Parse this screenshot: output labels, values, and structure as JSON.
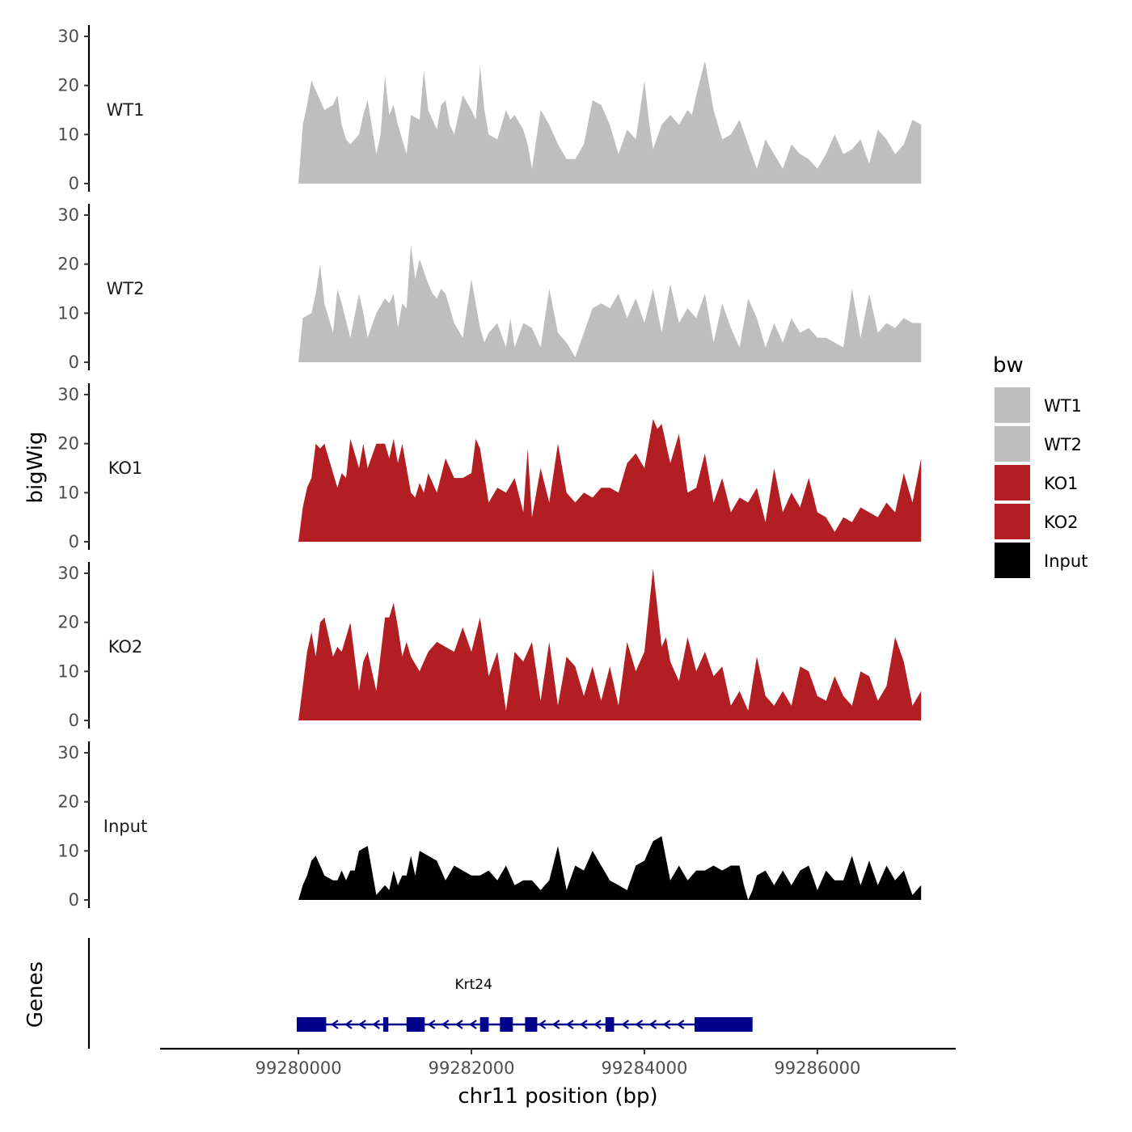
{
  "chart_data": {
    "type": "area",
    "title": "",
    "xlabel": "chr11 position (bp)",
    "ylabel": "bigWig",
    "genes_label": "Genes",
    "xlim": [
      99278400,
      99287600
    ],
    "xticks": [
      99280000,
      99282000,
      99284000,
      99286000
    ],
    "xtick_labels": [
      "99280000",
      "99282000",
      "99284000",
      "99286000"
    ],
    "ylim": [
      0,
      30
    ],
    "yticks": [
      0,
      10,
      20,
      30
    ],
    "ytick_labels": [
      "0",
      "10",
      "20",
      "30"
    ],
    "legend": {
      "title": "bw",
      "position": "right",
      "items": [
        {
          "label": "WT1",
          "color": "#bebebe"
        },
        {
          "label": "WT2",
          "color": "#bebebe"
        },
        {
          "label": "KO1",
          "color": "#b21e21"
        },
        {
          "label": "KO2",
          "color": "#b21e21"
        },
        {
          "label": "Input",
          "color": "#000000"
        }
      ]
    },
    "tracks": [
      {
        "name": "WT1",
        "color": "#bebebe",
        "x": [
          99280000,
          99280050,
          99280100,
          99280150,
          99280200,
          99280300,
          99280400,
          99280450,
          99280500,
          99280550,
          99280600,
          99280700,
          99280750,
          99280800,
          99280900,
          99280950,
          99281000,
          99281050,
          99281100,
          99281150,
          99281250,
          99281300,
          99281400,
          99281450,
          99281500,
          99281600,
          99281650,
          99281700,
          99281750,
          99281800,
          99281900,
          99282000,
          99282050,
          99282100,
          99282150,
          99282200,
          99282300,
          99282400,
          99282450,
          99282500,
          99282600,
          99282650,
          99282700,
          99282800,
          99282900,
          99283000,
          99283100,
          99283200,
          99283300,
          99283400,
          99283500,
          99283600,
          99283700,
          99283800,
          99283900,
          99284000,
          99284050,
          99284100,
          99284200,
          99284300,
          99284400,
          99284500,
          99284550,
          99284600,
          99284700,
          99284800,
          99284900,
          99285000,
          99285100,
          99285200,
          99285300,
          99285400,
          99285500,
          99285600,
          99285700,
          99285800,
          99285900,
          99286000,
          99286100,
          99286200,
          99286300,
          99286400,
          99286500,
          99286600,
          99286700,
          99286800,
          99286900,
          99287000,
          99287100,
          99287200
        ],
        "values": [
          0,
          12,
          16,
          21,
          19,
          15,
          16,
          18,
          12,
          9,
          8,
          10,
          14,
          17,
          6,
          10,
          22,
          14,
          16,
          12,
          6,
          14,
          13,
          23,
          15,
          11,
          16,
          17,
          12,
          10,
          18,
          15,
          13,
          24,
          15,
          10,
          9,
          15,
          13,
          14,
          11,
          8,
          3,
          15,
          12,
          8,
          5,
          5,
          8,
          17,
          16,
          12,
          6,
          11,
          9,
          21,
          13,
          7,
          12,
          14,
          12,
          15,
          14,
          18,
          25,
          15,
          9,
          10,
          13,
          8,
          3,
          9,
          6,
          3,
          8,
          6,
          5,
          3,
          6,
          10,
          6,
          7,
          9,
          4,
          11,
          9,
          6,
          8,
          13,
          12
        ],
        "label_value": 15
      },
      {
        "name": "WT2",
        "color": "#bebebe",
        "x": [
          99280000,
          99280050,
          99280150,
          99280200,
          99280250,
          99280300,
          99280400,
          99280450,
          99280500,
          99280600,
          99280700,
          99280750,
          99280800,
          99280900,
          99281000,
          99281050,
          99281100,
          99281150,
          99281200,
          99281250,
          99281300,
          99281350,
          99281400,
          99281500,
          99281550,
          99281600,
          99281650,
          99281700,
          99281800,
          99281900,
          99282000,
          99282100,
          99282150,
          99282200,
          99282300,
          99282400,
          99282450,
          99282500,
          99282600,
          99282700,
          99282800,
          99282900,
          99283000,
          99283100,
          99283200,
          99283300,
          99283400,
          99283500,
          99283600,
          99283700,
          99283800,
          99283900,
          99284000,
          99284100,
          99284200,
          99284300,
          99284400,
          99284500,
          99284600,
          99284700,
          99284800,
          99284900,
          99285000,
          99285100,
          99285200,
          99285300,
          99285400,
          99285500,
          99285600,
          99285700,
          99285800,
          99285900,
          99286000,
          99286100,
          99286200,
          99286300,
          99286400,
          99286500,
          99286600,
          99286700,
          99286800,
          99286900,
          99287000,
          99287100,
          99287200
        ],
        "values": [
          0,
          9,
          10,
          14,
          20,
          12,
          6,
          15,
          12,
          5,
          14,
          10,
          5,
          10,
          13,
          12,
          14,
          7,
          12,
          11,
          24,
          17,
          21,
          16,
          14,
          13,
          15,
          14,
          8,
          5,
          17,
          7,
          4,
          6,
          8,
          3,
          9,
          3,
          8,
          7,
          3,
          15,
          6,
          4,
          1,
          6,
          11,
          12,
          11,
          14,
          9,
          13,
          8,
          15,
          6,
          16,
          8,
          11,
          9,
          14,
          4,
          12,
          7,
          3,
          13,
          9,
          3,
          8,
          4,
          9,
          6,
          7,
          5,
          5,
          4,
          3,
          15,
          5,
          14,
          6,
          8,
          7,
          9,
          8,
          8
        ],
        "label_value": 15
      },
      {
        "name": "KO1",
        "color": "#b21e21",
        "x": [
          99280000,
          99280050,
          99280100,
          99280150,
          99280200,
          99280250,
          99280300,
          99280400,
          99280450,
          99280500,
          99280550,
          99280600,
          99280650,
          99280700,
          99280750,
          99280800,
          99280900,
          99281000,
          99281050,
          99281100,
          99281150,
          99281200,
          99281300,
          99281350,
          99281400,
          99281450,
          99281500,
          99281600,
          99281700,
          99281800,
          99281900,
          99282000,
          99282050,
          99282100,
          99282200,
          99282300,
          99282400,
          99282500,
          99282600,
          99282650,
          99282700,
          99282800,
          99282900,
          99283000,
          99283100,
          99283200,
          99283300,
          99283400,
          99283500,
          99283600,
          99283700,
          99283800,
          99283900,
          99284000,
          99284100,
          99284150,
          99284200,
          99284300,
          99284400,
          99284500,
          99284600,
          99284700,
          99284800,
          99284900,
          99285000,
          99285100,
          99285200,
          99285300,
          99285400,
          99285500,
          99285600,
          99285700,
          99285800,
          99285900,
          99286000,
          99286100,
          99286200,
          99286300,
          99286400,
          99286500,
          99286600,
          99286700,
          99286800,
          99286900,
          99287000,
          99287100,
          99287200
        ],
        "values": [
          0,
          7,
          11,
          13,
          20,
          19,
          20,
          14,
          11,
          14,
          13,
          21,
          18,
          15,
          20,
          15,
          20,
          20,
          17,
          21,
          16,
          20,
          10,
          9,
          12,
          10,
          14,
          10,
          17,
          13,
          13,
          14,
          21,
          19,
          8,
          11,
          10,
          13,
          6,
          19,
          5,
          15,
          8,
          20,
          10,
          8,
          10,
          9,
          11,
          11,
          10,
          16,
          18,
          15,
          25,
          23,
          24,
          16,
          22,
          10,
          11,
          18,
          8,
          13,
          6,
          9,
          8,
          11,
          4,
          15,
          6,
          10,
          7,
          13,
          6,
          5,
          2,
          5,
          4,
          7,
          6,
          5,
          8,
          6,
          14,
          8,
          17
        ],
        "label_value": 15
      },
      {
        "name": "KO2",
        "color": "#b21e21",
        "x": [
          99280000,
          99280050,
          99280100,
          99280150,
          99280200,
          99280250,
          99280300,
          99280400,
          99280450,
          99280500,
          99280600,
          99280700,
          99280750,
          99280800,
          99280900,
          99281000,
          99281050,
          99281100,
          99281150,
          99281200,
          99281250,
          99281300,
          99281400,
          99281500,
          99281600,
          99281700,
          99281800,
          99281900,
          99282000,
          99282100,
          99282200,
          99282300,
          99282400,
          99282500,
          99282600,
          99282700,
          99282800,
          99282900,
          99283000,
          99283100,
          99283200,
          99283300,
          99283400,
          99283500,
          99283600,
          99283700,
          99283800,
          99283900,
          99284000,
          99284100,
          99284200,
          99284250,
          99284300,
          99284400,
          99284500,
          99284600,
          99284700,
          99284800,
          99284900,
          99285000,
          99285100,
          99285200,
          99285300,
          99285400,
          99285500,
          99285600,
          99285700,
          99285800,
          99285900,
          99286000,
          99286100,
          99286200,
          99286300,
          99286400,
          99286500,
          99286600,
          99286700,
          99286800,
          99286900,
          99287000,
          99287100,
          99287200
        ],
        "values": [
          0,
          7,
          14,
          18,
          13,
          20,
          21,
          13,
          15,
          14,
          20,
          6,
          12,
          14,
          6,
          21,
          21,
          24,
          19,
          13,
          16,
          13,
          10,
          14,
          16,
          15,
          14,
          19,
          14,
          21,
          9,
          14,
          2,
          14,
          12,
          16,
          4,
          16,
          3,
          13,
          11,
          5,
          11,
          4,
          11,
          3,
          16,
          10,
          14,
          31,
          15,
          17,
          12,
          8,
          17,
          10,
          14,
          9,
          11,
          3,
          6,
          2,
          13,
          5,
          3,
          6,
          3,
          11,
          10,
          5,
          4,
          9,
          5,
          3,
          10,
          9,
          4,
          7,
          17,
          12,
          3,
          6
        ],
        "label_value": 15
      },
      {
        "name": "Input",
        "color": "#000000",
        "x": [
          99280000,
          99280050,
          99280100,
          99280150,
          99280200,
          99280250,
          99280300,
          99280400,
          99280450,
          99280500,
          99280550,
          99280600,
          99280650,
          99280700,
          99280800,
          99280900,
          99281000,
          99281050,
          99281100,
          99281150,
          99281200,
          99281250,
          99281300,
          99281350,
          99281400,
          99281500,
          99281600,
          99281700,
          99281800,
          99281900,
          99282000,
          99282100,
          99282200,
          99282300,
          99282400,
          99282500,
          99282600,
          99282700,
          99282800,
          99282900,
          99283000,
          99283100,
          99283200,
          99283300,
          99283400,
          99283500,
          99283600,
          99283700,
          99283800,
          99283900,
          99284000,
          99284100,
          99284200,
          99284300,
          99284400,
          99284500,
          99284600,
          99284700,
          99284800,
          99284900,
          99285000,
          99285100,
          99285150,
          99285200,
          99285250,
          99285300,
          99285400,
          99285500,
          99285600,
          99285700,
          99285800,
          99285900,
          99286000,
          99286100,
          99286200,
          99286300,
          99286400,
          99286500,
          99286600,
          99286700,
          99286800,
          99286900,
          99287000,
          99287100,
          99287200
        ],
        "values": [
          0,
          3,
          5,
          8,
          9,
          7,
          5,
          4,
          4,
          6,
          4,
          6,
          6,
          10,
          11,
          1,
          3,
          2,
          6,
          3,
          5,
          5,
          9,
          5,
          10,
          9,
          8,
          4,
          7,
          6,
          5,
          5,
          6,
          4,
          7,
          3,
          4,
          4,
          2,
          4,
          11,
          2,
          7,
          6,
          10,
          7,
          4,
          3,
          2,
          7,
          8,
          12,
          13,
          4,
          7,
          4,
          6,
          6,
          7,
          6,
          7,
          7,
          3,
          0,
          2,
          5,
          6,
          3,
          6,
          3,
          6,
          7,
          2,
          6,
          4,
          4,
          9,
          3,
          8,
          3,
          7,
          4,
          6,
          1,
          3
        ],
        "label_value": 15
      }
    ],
    "gene_track": {
      "gene_name": "Krt24",
      "strand": "-",
      "start": 99280000,
      "end": 99285250,
      "color": "#00008b",
      "exons": [
        [
          99279980,
          99280320
        ],
        [
          99280980,
          99281040
        ],
        [
          99281250,
          99281460
        ],
        [
          99282100,
          99282200
        ],
        [
          99282330,
          99282480
        ],
        [
          99282620,
          99282760
        ],
        [
          99283550,
          99283650
        ],
        [
          99284580,
          99285250
        ]
      ]
    }
  }
}
